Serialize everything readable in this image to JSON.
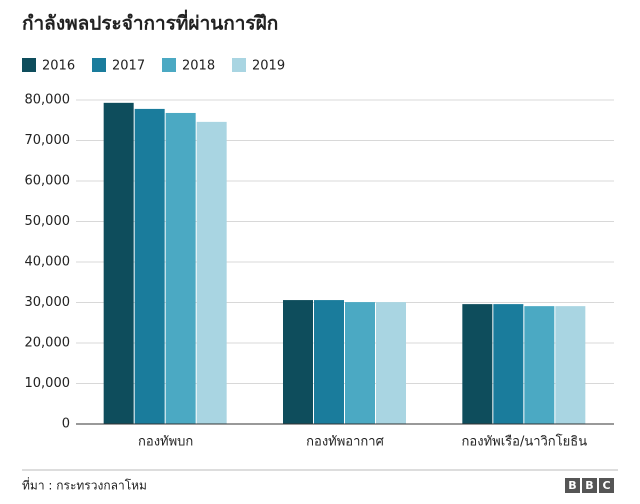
{
  "chart_data": {
    "type": "bar",
    "title": "กำลังพลประจำการที่ผ่านการฝึก",
    "categories": [
      "กองทัพบก",
      "กองทัพอากาศ",
      "กองทัพเรือ/นาวิกโยธิน"
    ],
    "series": [
      {
        "name": "2016",
        "color": "#0e4d5c",
        "values": [
          79300,
          30600,
          29600
        ]
      },
      {
        "name": "2017",
        "color": "#1a7c9c",
        "values": [
          77800,
          30600,
          29600
        ]
      },
      {
        "name": "2018",
        "color": "#4ba9c3",
        "values": [
          76800,
          30100,
          29100
        ]
      },
      {
        "name": "2019",
        "color": "#a9d5e2",
        "values": [
          74600,
          30100,
          29100
        ]
      }
    ],
    "ylim": [
      0,
      80000
    ],
    "yticks": [
      0,
      {
        "value": 10000,
        "label": "10,000"
      },
      {
        "value": 20000,
        "label": "20,000"
      },
      {
        "value": 30000,
        "label": "30,000"
      },
      {
        "value": 40000,
        "label": "40,000"
      },
      {
        "value": 50000,
        "label": "50,000"
      },
      {
        "value": 60000,
        "label": "60,000"
      },
      {
        "value": 70000,
        "label": "70,000"
      },
      {
        "value": 80000,
        "label": "80,000"
      }
    ],
    "grid": true,
    "source": "ที่มา : กระทรวงกลาโหม",
    "logo": [
      "B",
      "B",
      "C"
    ]
  }
}
